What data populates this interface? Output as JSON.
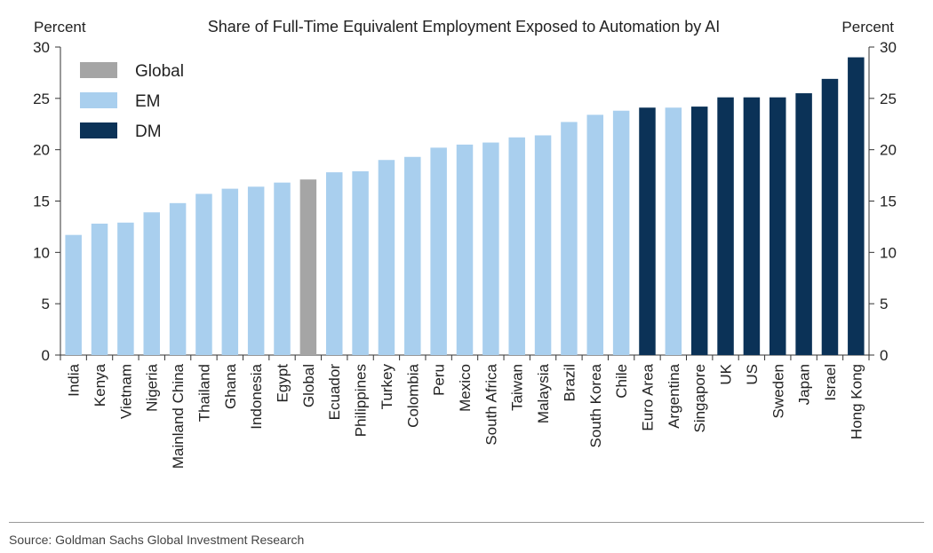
{
  "chart_data": {
    "type": "bar",
    "title": "Share of Full-Time Equivalent Employment Exposed to Automation by AI",
    "ylabel_left": "Percent",
    "ylabel_right": "Percent",
    "ylim": [
      0,
      30
    ],
    "yticks": [
      0,
      5,
      10,
      15,
      20,
      25,
      30
    ],
    "legend": [
      {
        "name": "Global",
        "color": "#a5a5a5"
      },
      {
        "name": "EM",
        "color": "#a9cfee"
      },
      {
        "name": "DM",
        "color": "#0b3257"
      }
    ],
    "legend_position": "top-left",
    "categories": [
      "India",
      "Kenya",
      "Vietnam",
      "Nigeria",
      "Mainland China",
      "Thailand",
      "Ghana",
      "Indonesia",
      "Egypt",
      "Global",
      "Ecuador",
      "Philippines",
      "Turkey",
      "Colombia",
      "Peru",
      "Mexico",
      "South Africa",
      "Taiwan",
      "Malaysia",
      "Brazil",
      "South Korea",
      "Chile",
      "Euro Area",
      "Argentina",
      "Singapore",
      "UK",
      "US",
      "Sweden",
      "Japan",
      "Israel",
      "Hong Kong"
    ],
    "values": [
      11.7,
      12.8,
      12.9,
      13.9,
      14.8,
      15.7,
      16.2,
      16.4,
      16.8,
      17.1,
      17.8,
      17.9,
      19.0,
      19.3,
      20.2,
      20.5,
      20.7,
      21.2,
      21.4,
      22.7,
      23.4,
      23.8,
      24.1,
      24.1,
      24.2,
      25.1,
      25.1,
      25.1,
      25.5,
      26.9,
      29.0
    ],
    "groups": [
      "EM",
      "EM",
      "EM",
      "EM",
      "EM",
      "EM",
      "EM",
      "EM",
      "EM",
      "Global",
      "EM",
      "EM",
      "EM",
      "EM",
      "EM",
      "EM",
      "EM",
      "EM",
      "EM",
      "EM",
      "EM",
      "EM",
      "DM",
      "EM",
      "DM",
      "DM",
      "DM",
      "DM",
      "DM",
      "DM",
      "DM"
    ]
  },
  "source": "Source: Goldman Sachs Global Investment Research"
}
